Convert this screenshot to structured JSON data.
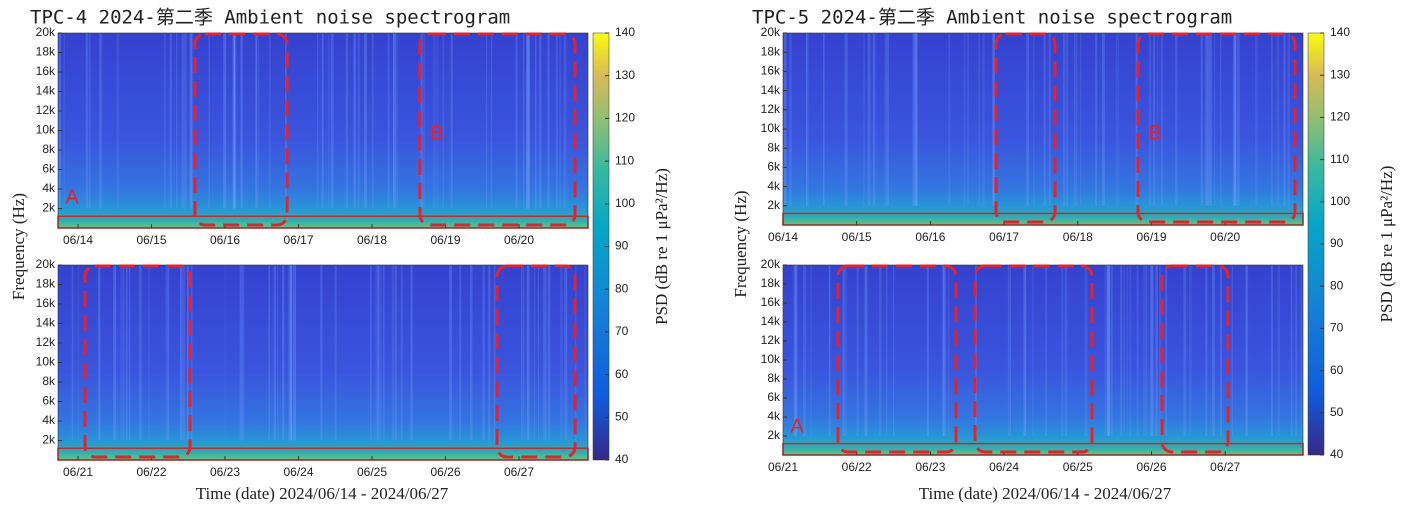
{
  "chart_data": [
    {
      "type": "spectrogram",
      "title": "TPC-4 2024-第二季 Ambient noise spectrogram",
      "y_label": "Frequency (Hz)",
      "x_label": "Time (date) 2024/06/14 - 2024/06/27",
      "colorbar": {
        "label": "PSD (dB re 1 μPa²/Hz)",
        "lim": [
          40,
          140
        ],
        "ticks": [
          40,
          50,
          60,
          70,
          80,
          90,
          100,
          110,
          120,
          130,
          140
        ]
      },
      "panels": [
        {
          "categories": [
            "06/14",
            "06/15",
            "06/16",
            "06/17",
            "06/18",
            "06/19",
            "06/20"
          ],
          "ylim": [
            0,
            20000
          ],
          "yticks": [
            {
              "value": 2000,
              "label": "2k"
            },
            {
              "value": 4000,
              "label": "4k"
            },
            {
              "value": 6000,
              "label": "6k"
            },
            {
              "value": 8000,
              "label": "8k"
            },
            {
              "value": 10000,
              "label": "10k"
            },
            {
              "value": 12000,
              "label": "12k"
            },
            {
              "value": 14000,
              "label": "14k"
            },
            {
              "value": 16000,
              "label": "16k"
            },
            {
              "value": 18000,
              "label": "18k"
            },
            {
              "value": 20000,
              "label": "20k"
            }
          ],
          "annotations": [
            "A",
            "B"
          ]
        },
        {
          "categories": [
            "06/21",
            "06/22",
            "06/23",
            "06/24",
            "06/25",
            "06/26",
            "06/27"
          ],
          "ylim": [
            0,
            20000
          ],
          "yticks": [
            {
              "value": 2000,
              "label": "2k"
            },
            {
              "value": 4000,
              "label": "4k"
            },
            {
              "value": 6000,
              "label": "6k"
            },
            {
              "value": 8000,
              "label": "8k"
            },
            {
              "value": 10000,
              "label": "10k"
            },
            {
              "value": 12000,
              "label": "12k"
            },
            {
              "value": 14000,
              "label": "14k"
            },
            {
              "value": 16000,
              "label": "16k"
            },
            {
              "value": 18000,
              "label": "18k"
            },
            {
              "value": 20000,
              "label": "20k"
            }
          ],
          "annotations": []
        }
      ]
    },
    {
      "type": "spectrogram",
      "title": "TPC-5 2024-第二季 Ambient noise spectrogram",
      "y_label": "Frequency (Hz)",
      "x_label": "Time (date) 2024/06/14 - 2024/06/27",
      "colorbar": {
        "label": "PSD (dB re 1 μPa²/Hz)",
        "lim": [
          40,
          140
        ],
        "ticks": [
          40,
          50,
          60,
          70,
          80,
          90,
          100,
          110,
          120,
          130,
          140
        ]
      },
      "panels": [
        {
          "categories": [
            "06/14",
            "06/15",
            "06/16",
            "06/17",
            "06/18",
            "06/19",
            "06/20"
          ],
          "ylim": [
            0,
            20000
          ],
          "yticks": [
            {
              "value": 2000,
              "label": "2k"
            },
            {
              "value": 4000,
              "label": "4k"
            },
            {
              "value": 6000,
              "label": "6k"
            },
            {
              "value": 8000,
              "label": "8k"
            },
            {
              "value": 10000,
              "label": "10k"
            },
            {
              "value": 12000,
              "label": "12k"
            },
            {
              "value": 14000,
              "label": "14k"
            },
            {
              "value": 16000,
              "label": "16k"
            },
            {
              "value": 18000,
              "label": "18k"
            },
            {
              "value": 20000,
              "label": "20k"
            }
          ],
          "annotations": [
            "B"
          ]
        },
        {
          "categories": [
            "06/21",
            "06/22",
            "06/23",
            "06/24",
            "06/25",
            "06/26",
            "06/27"
          ],
          "ylim": [
            0,
            20000
          ],
          "yticks": [
            {
              "value": 2000,
              "label": "2k"
            },
            {
              "value": 4000,
              "label": "4k"
            },
            {
              "value": 6000,
              "label": "6k"
            },
            {
              "value": 8000,
              "label": "8k"
            },
            {
              "value": 10000,
              "label": "10k"
            },
            {
              "value": 12000,
              "label": "12k"
            },
            {
              "value": 14000,
              "label": "14k"
            },
            {
              "value": 16000,
              "label": "16k"
            },
            {
              "value": 18000,
              "label": "18k"
            },
            {
              "value": 20000,
              "label": "20k"
            }
          ],
          "annotations": [
            "A"
          ]
        }
      ]
    }
  ]
}
